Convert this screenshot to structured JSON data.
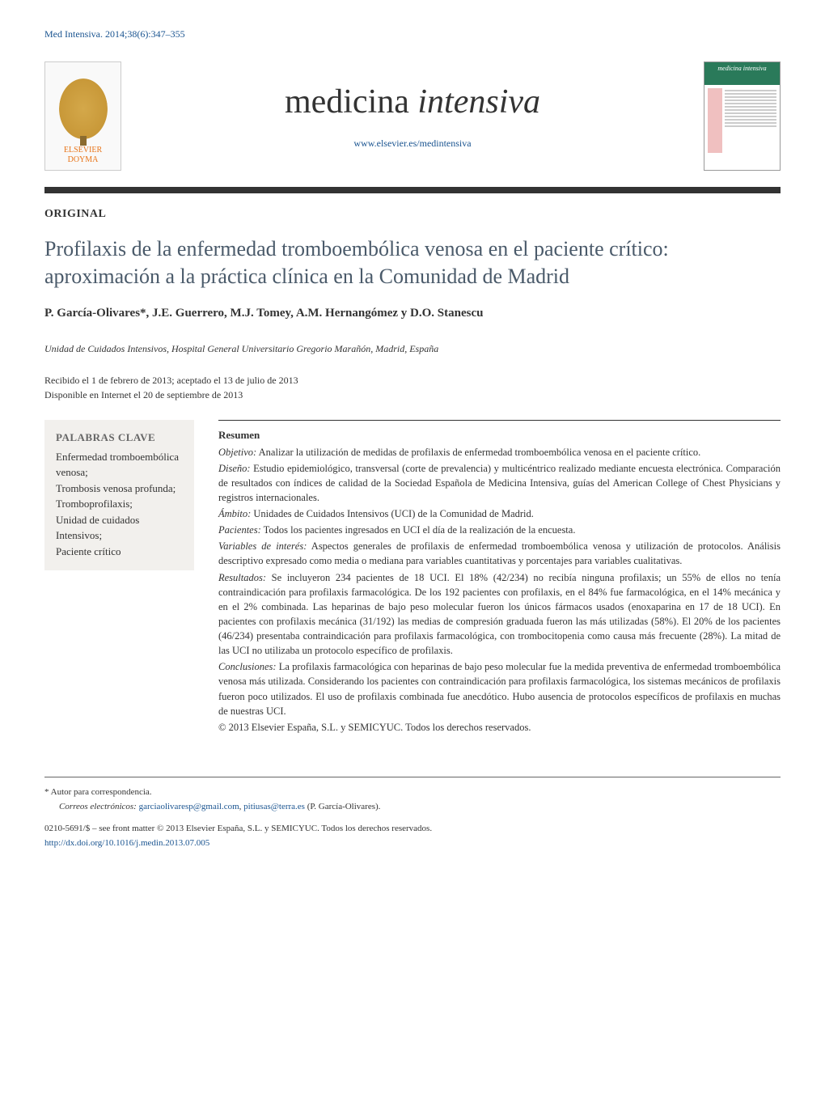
{
  "citation": "Med Intensiva. 2014;38(6):347–355",
  "publisher": {
    "name_line1": "ELSEVIER",
    "name_line2": "DOYMA"
  },
  "journal": {
    "title_part1": "medicina ",
    "title_part2": "intensiva",
    "url": "www.elsevier.es/medintensiva",
    "cover_title": "medicina intensiva"
  },
  "article": {
    "type": "ORIGINAL",
    "title": "Profilaxis de la enfermedad tromboembólica venosa en el paciente crítico: aproximación a la práctica clínica en la Comunidad de Madrid",
    "authors": "P. García-Olivares*, J.E. Guerrero, M.J. Tomey, A.M. Hernangómez y D.O. Stanescu",
    "affiliation": "Unidad de Cuidados Intensivos, Hospital General Universitario Gregorio Marañón, Madrid, España",
    "received": "Recibido el 1 de febrero de 2013; aceptado el 13 de julio de 2013",
    "online": "Disponible en Internet el 20 de septiembre de 2013"
  },
  "keywords": {
    "heading": "PALABRAS CLAVE",
    "list": "Enfermedad tromboembólica venosa;\nTrombosis venosa profunda;\nTromboprofilaxis;\nUnidad de cuidados Intensivos;\nPaciente crítico"
  },
  "abstract": {
    "heading": "Resumen",
    "sections": [
      {
        "label": "Objetivo:",
        "text": " Analizar la utilización de medidas de profilaxis de enfermedad tromboembólica venosa en el paciente crítico."
      },
      {
        "label": "Diseño:",
        "text": " Estudio epidemiológico, transversal (corte de prevalencia) y multicéntrico realizado mediante encuesta electrónica. Comparación de resultados con índices de calidad de la Sociedad Española de Medicina Intensiva, guías del American College of Chest Physicians y registros internacionales."
      },
      {
        "label": "Ámbito:",
        "text": " Unidades de Cuidados Intensivos (UCI) de la Comunidad de Madrid."
      },
      {
        "label": "Pacientes:",
        "text": " Todos los pacientes ingresados en UCI el día de la realización de la encuesta."
      },
      {
        "label": "Variables de interés:",
        "text": " Aspectos generales de profilaxis de enfermedad tromboembólica venosa y utilización de protocolos. Análisis descriptivo expresado como media o mediana para variables cuantitativas y porcentajes para variables cualitativas."
      },
      {
        "label": "Resultados:",
        "text": " Se incluyeron 234 pacientes de 18 UCI. El 18% (42/234) no recibía ninguna profilaxis; un 55% de ellos no tenía contraindicación para profilaxis farmacológica. De los 192 pacientes con profilaxis, en el 84% fue farmacológica, en el 14% mecánica y en el 2% combinada. Las heparinas de bajo peso molecular fueron los únicos fármacos usados (enoxaparina en 17 de 18 UCI). En pacientes con profilaxis mecánica (31/192) las medias de compresión graduada fueron las más utilizadas (58%). El 20% de los pacientes (46/234) presentaba contraindicación para profilaxis farmacológica, con trombocitopenia como causa más frecuente (28%). La mitad de las UCI no utilizaba un protocolo específico de profilaxis."
      },
      {
        "label": "Conclusiones:",
        "text": " La profilaxis farmacológica con heparinas de bajo peso molecular fue la medida preventiva de enfermedad tromboembólica venosa más utilizada. Considerando los pacientes con contraindicación para profilaxis farmacológica, los sistemas mecánicos de profilaxis fueron poco utilizados. El uso de profilaxis combinada fue anecdótico. Hubo ausencia de protocolos específicos de profilaxis en muchas de nuestras UCI."
      }
    ],
    "copyright": "© 2013 Elsevier España, S.L. y SEMICYUC. Todos los derechos reservados."
  },
  "footer": {
    "corresponding_note": "* Autor para correspondencia.",
    "email_label": "Correos electrónicos: ",
    "email1": "garciaolivaresp@gmail.com",
    "email_sep": ", ",
    "email2": "pitiusas@terra.es",
    "email_author": " (P. García-Olivares).",
    "issn": "0210-5691/$ – see front matter © 2013 Elsevier España, S.L. y SEMICYUC. Todos los derechos reservados.",
    "doi": "http://dx.doi.org/10.1016/j.medin.2013.07.005"
  },
  "colors": {
    "link": "#1a5490",
    "title": "#4a5a6a",
    "orange": "#e8751a",
    "keywords_bg": "#f2f0ed",
    "cover_green": "#2a7a5a"
  }
}
